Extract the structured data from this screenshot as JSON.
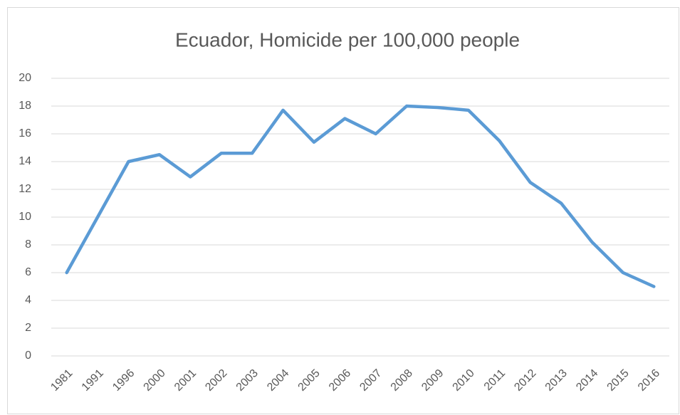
{
  "chart_data": {
    "type": "line",
    "title": "Ecuador, Homicide per 100,000 people",
    "categories": [
      "1981",
      "1991",
      "1996",
      "2000",
      "2001",
      "2002",
      "2003",
      "2004",
      "2005",
      "2006",
      "2007",
      "2008",
      "2009",
      "2010",
      "2011",
      "2012",
      "2013",
      "2014",
      "2015",
      "2016"
    ],
    "series": [
      {
        "name": "Homicide per 100,000 people",
        "color": "#5b9bd5",
        "values": [
          6,
          10,
          14,
          14.5,
          12.9,
          14.6,
          14.6,
          17.7,
          15.4,
          17.1,
          16,
          18,
          17.9,
          17.7,
          15.5,
          12.5,
          11,
          8.2,
          6,
          5
        ]
      }
    ],
    "ylim": [
      0,
      20
    ],
    "yticks": [
      0,
      2,
      4,
      6,
      8,
      10,
      12,
      14,
      16,
      18,
      20
    ],
    "grid": true
  }
}
